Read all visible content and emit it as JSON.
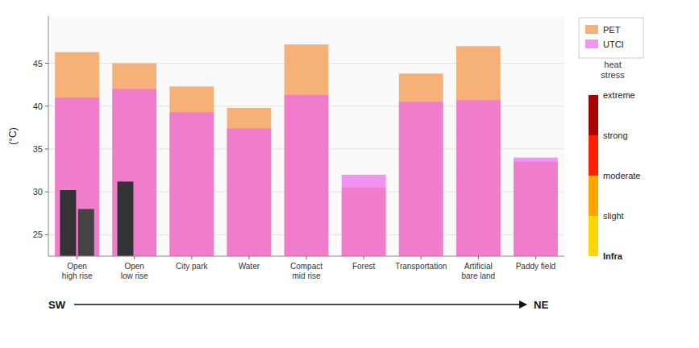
{
  "chart_data": {
    "type": "bar",
    "categories": [
      "Open\nhigh rise",
      "Open\nlow rise",
      "City park",
      "Water",
      "Compact\nmid rise",
      "Forest",
      "Transportation",
      "Artificial\nbare land",
      "Paddy field"
    ],
    "series": [
      {
        "name": "PET",
        "color": "#F5A96A",
        "values": [
          46.3,
          45.0,
          42.3,
          39.8,
          47.2,
          30.5,
          43.8,
          47.0,
          33.5
        ]
      },
      {
        "name": "UTCI",
        "color": "#EE66EE",
        "values": [
          41.0,
          42.0,
          39.3,
          37.4,
          41.3,
          32.0,
          40.5,
          40.7,
          34.0
        ]
      },
      {
        "color": "#333333",
        "values": [
          30.2,
          31.2,
          null,
          null,
          null,
          null,
          null,
          null,
          null
        ]
      },
      {
        "color": "#444444",
        "values": [
          28.0,
          null,
          null,
          null,
          null,
          null,
          null,
          null,
          null
        ]
      }
    ],
    "ylabel": "(°C)",
    "ylim": [
      22.5,
      50.5
    ],
    "yticks": [
      25,
      30,
      35,
      40,
      45
    ],
    "grid": true,
    "legend": "right",
    "annotations": [
      "SW",
      "NE"
    ],
    "colorbar": {
      "title": "heat\nstress",
      "colors": [
        "#FFD700",
        "#FFA500",
        "#FF2000",
        "#AA0000"
      ],
      "labels": [
        "Infra",
        "slight",
        "moderate",
        "strong",
        "extreme"
      ]
    }
  }
}
